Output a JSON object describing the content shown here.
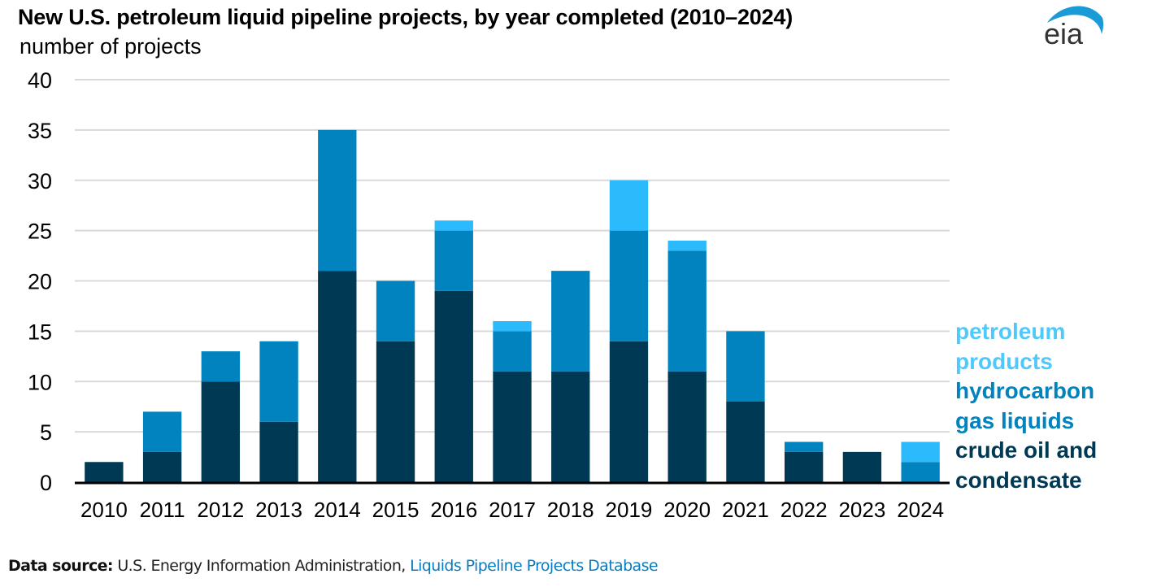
{
  "chart_data": {
    "type": "bar",
    "stacked": true,
    "title": "New U.S. petroleum liquid pipeline projects, by year completed (2010–2024)",
    "ylabel": "number of projects",
    "xlabel": "",
    "ylim": [
      0,
      40
    ],
    "yticks": [
      0,
      5,
      10,
      15,
      20,
      25,
      30,
      35,
      40
    ],
    "grid": true,
    "legend_position": "right",
    "categories": [
      "2010",
      "2011",
      "2012",
      "2013",
      "2014",
      "2015",
      "2016",
      "2017",
      "2018",
      "2019",
      "2020",
      "2021",
      "2022",
      "2023",
      "2024"
    ],
    "series": [
      {
        "name": "crude oil and condensate",
        "color": "#003953",
        "values": [
          2,
          3,
          10,
          6,
          21,
          14,
          19,
          11,
          11,
          14,
          11,
          8,
          3,
          3,
          0
        ]
      },
      {
        "name": "hydrocarbon gas liquids",
        "color": "#0083be",
        "values": [
          0,
          4,
          3,
          8,
          14,
          6,
          6,
          4,
          10,
          11,
          12,
          7,
          1,
          0,
          2
        ]
      },
      {
        "name": "petroleum products",
        "color": "#2bbafb",
        "values": [
          0,
          0,
          0,
          0,
          0,
          0,
          1,
          1,
          0,
          5,
          1,
          0,
          0,
          0,
          2
        ]
      }
    ]
  },
  "legend": [
    {
      "label": "petroleum\nproducts",
      "color": "#4fc8fb"
    },
    {
      "label": "hydrocarbon\ngas liquids",
      "color": "#0083be"
    },
    {
      "label": "crude oil and\ncondensate",
      "color": "#003953"
    }
  ],
  "logo": {
    "text": "eia",
    "arc_color": "#1a9ad6",
    "text_color": "#333333"
  },
  "source": {
    "label": "Data source:",
    "text": " U.S. Energy Information Administration, ",
    "link": "Liquids Pipeline Projects Database"
  },
  "colors": {
    "grid": "#d9d9d9",
    "axis": "#000000"
  }
}
